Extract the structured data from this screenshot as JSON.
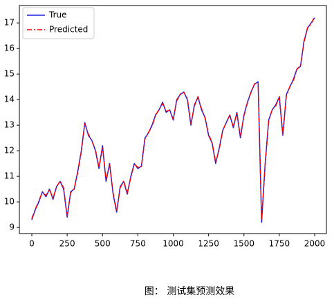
{
  "chart_data": {
    "type": "line",
    "caption": "图： 测试集预测效果",
    "x": [
      0,
      25,
      50,
      75,
      100,
      125,
      150,
      175,
      200,
      225,
      250,
      275,
      300,
      325,
      350,
      375,
      400,
      425,
      450,
      475,
      500,
      525,
      550,
      575,
      600,
      625,
      650,
      675,
      700,
      725,
      750,
      775,
      800,
      825,
      850,
      875,
      900,
      925,
      950,
      975,
      1000,
      1025,
      1050,
      1075,
      1100,
      1125,
      1150,
      1175,
      1200,
      1225,
      1250,
      1275,
      1300,
      1325,
      1350,
      1375,
      1400,
      1425,
      1450,
      1475,
      1500,
      1525,
      1550,
      1575,
      1600,
      1625,
      1650,
      1675,
      1700,
      1725,
      1750,
      1775,
      1800,
      1825,
      1850,
      1875,
      1900,
      1925,
      1950,
      1975,
      2000
    ],
    "series": [
      {
        "name": "True",
        "color": "#1f1fe0",
        "linestyle": "solid",
        "values": [
          9.3,
          9.7,
          10.0,
          10.4,
          10.2,
          10.5,
          10.1,
          10.6,
          10.8,
          10.5,
          9.4,
          10.4,
          10.5,
          11.2,
          12.0,
          13.1,
          12.6,
          12.4,
          12.0,
          11.3,
          12.2,
          10.8,
          11.5,
          10.3,
          9.6,
          10.6,
          10.8,
          10.3,
          11.0,
          11.5,
          11.3,
          11.4,
          12.5,
          12.7,
          13.0,
          13.4,
          13.6,
          13.9,
          13.5,
          13.6,
          13.2,
          14.0,
          14.2,
          14.3,
          14.0,
          13.0,
          13.8,
          14.1,
          13.6,
          13.3,
          12.6,
          12.3,
          11.5,
          12.1,
          12.8,
          13.1,
          13.4,
          12.9,
          13.5,
          12.5,
          13.4,
          13.9,
          14.3,
          14.6,
          14.7,
          9.2,
          11.5,
          13.2,
          13.6,
          13.8,
          14.1,
          12.6,
          14.2,
          14.5,
          14.8,
          15.2,
          15.3,
          16.3,
          16.8,
          17.0,
          17.2
        ]
      },
      {
        "name": "Predicted",
        "color": "#ff0000",
        "linestyle": "dashdot",
        "values": [
          9.35,
          9.72,
          10.05,
          10.38,
          10.25,
          10.48,
          10.15,
          10.58,
          10.82,
          10.55,
          9.45,
          10.36,
          10.52,
          11.15,
          11.95,
          13.05,
          12.65,
          12.38,
          12.05,
          11.35,
          12.15,
          10.85,
          11.45,
          10.35,
          9.65,
          10.55,
          10.82,
          10.35,
          10.95,
          11.48,
          11.35,
          11.38,
          12.45,
          12.72,
          12.95,
          13.38,
          13.62,
          13.85,
          13.55,
          13.58,
          13.25,
          13.95,
          14.22,
          14.28,
          14.05,
          13.05,
          13.75,
          14.12,
          13.65,
          13.28,
          12.65,
          12.32,
          11.55,
          12.05,
          12.78,
          13.12,
          13.38,
          12.95,
          13.45,
          12.55,
          13.35,
          13.88,
          14.28,
          14.62,
          14.65,
          9.3,
          11.45,
          13.15,
          13.62,
          13.75,
          14.12,
          12.65,
          14.15,
          14.52,
          14.75,
          15.18,
          15.35,
          16.25,
          16.82,
          16.95,
          17.25
        ]
      }
    ],
    "xlim": [
      -88,
      2083
    ],
    "ylim": [
      8.76,
      17.68
    ],
    "xticks": [
      0,
      250,
      500,
      750,
      1000,
      1250,
      1500,
      1750,
      2000
    ],
    "yticks": [
      9,
      10,
      11,
      12,
      13,
      14,
      15,
      16,
      17
    ],
    "legend": "upper left",
    "grid": false
  }
}
